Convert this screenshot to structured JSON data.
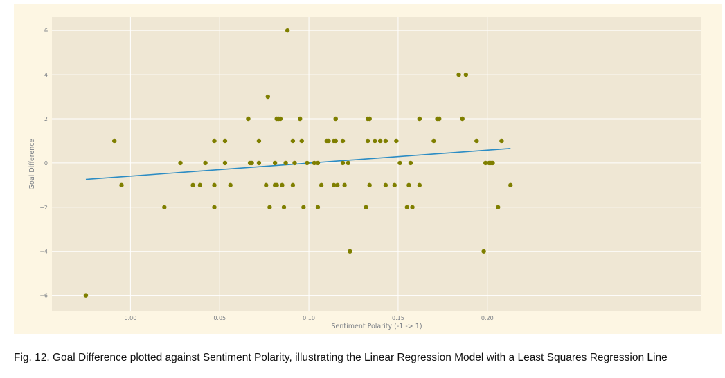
{
  "caption": "Fig. 12. Goal Difference plotted against Sentiment Polarity, illustrating the Linear Regression Model with a Least Squares Regression Line",
  "colors": {
    "figure_background": "#fdf6e3",
    "plot_background": "#efe7d4",
    "grid": "#ffffff",
    "points": "#7f7f00",
    "regression_line": "#2b8cc4",
    "text": "#7a7f86"
  },
  "chart_data": {
    "type": "scatter",
    "title": "",
    "xlabel": "Sentiment Polarity (-1 -> 1)",
    "ylabel": "Goal Difference",
    "xlim": [
      -0.044,
      0.32
    ],
    "ylim": [
      -6.7,
      6.6
    ],
    "grid": true,
    "x_ticks": [
      0.0,
      0.05,
      0.1,
      0.15,
      0.2
    ],
    "x_tick_labels": [
      "0.00",
      "0.05",
      "0.10",
      "0.15",
      "0.20"
    ],
    "y_ticks": [
      -6,
      -4,
      -2,
      0,
      2,
      4,
      6
    ],
    "y_tick_labels": [
      "−6",
      "−4",
      "−2",
      "0",
      "2",
      "4",
      "6"
    ],
    "points": [
      {
        "x": -0.025,
        "y": -6
      },
      {
        "x": -0.009,
        "y": 1
      },
      {
        "x": -0.005,
        "y": -1
      },
      {
        "x": 0.019,
        "y": -2
      },
      {
        "x": 0.028,
        "y": 0
      },
      {
        "x": 0.035,
        "y": -1
      },
      {
        "x": 0.039,
        "y": -1
      },
      {
        "x": 0.042,
        "y": 0
      },
      {
        "x": 0.047,
        "y": 1
      },
      {
        "x": 0.047,
        "y": -1
      },
      {
        "x": 0.047,
        "y": -2
      },
      {
        "x": 0.053,
        "y": 1
      },
      {
        "x": 0.053,
        "y": 0
      },
      {
        "x": 0.056,
        "y": -1
      },
      {
        "x": 0.066,
        "y": 2
      },
      {
        "x": 0.067,
        "y": 0
      },
      {
        "x": 0.068,
        "y": 0
      },
      {
        "x": 0.072,
        "y": 1
      },
      {
        "x": 0.072,
        "y": 0
      },
      {
        "x": 0.076,
        "y": -1
      },
      {
        "x": 0.077,
        "y": 3
      },
      {
        "x": 0.078,
        "y": -2
      },
      {
        "x": 0.081,
        "y": 0
      },
      {
        "x": 0.082,
        "y": 2
      },
      {
        "x": 0.083,
        "y": 2
      },
      {
        "x": 0.084,
        "y": 2
      },
      {
        "x": 0.081,
        "y": -1
      },
      {
        "x": 0.082,
        "y": -1
      },
      {
        "x": 0.085,
        "y": -1
      },
      {
        "x": 0.086,
        "y": -2
      },
      {
        "x": 0.087,
        "y": 0
      },
      {
        "x": 0.088,
        "y": 6
      },
      {
        "x": 0.091,
        "y": 1
      },
      {
        "x": 0.091,
        "y": -1
      },
      {
        "x": 0.092,
        "y": 0
      },
      {
        "x": 0.095,
        "y": 2
      },
      {
        "x": 0.096,
        "y": 1
      },
      {
        "x": 0.097,
        "y": -2
      },
      {
        "x": 0.099,
        "y": 0
      },
      {
        "x": 0.103,
        "y": 0
      },
      {
        "x": 0.105,
        "y": 0
      },
      {
        "x": 0.105,
        "y": -2
      },
      {
        "x": 0.107,
        "y": -1
      },
      {
        "x": 0.11,
        "y": 1
      },
      {
        "x": 0.111,
        "y": 1
      },
      {
        "x": 0.114,
        "y": 1
      },
      {
        "x": 0.115,
        "y": 1
      },
      {
        "x": 0.115,
        "y": 2
      },
      {
        "x": 0.114,
        "y": -1
      },
      {
        "x": 0.116,
        "y": -1
      },
      {
        "x": 0.119,
        "y": 0
      },
      {
        "x": 0.119,
        "y": 1
      },
      {
        "x": 0.12,
        "y": -1
      },
      {
        "x": 0.122,
        "y": 0
      },
      {
        "x": 0.123,
        "y": -4
      },
      {
        "x": 0.132,
        "y": -2
      },
      {
        "x": 0.133,
        "y": 1
      },
      {
        "x": 0.133,
        "y": 2
      },
      {
        "x": 0.134,
        "y": 2
      },
      {
        "x": 0.134,
        "y": -1
      },
      {
        "x": 0.137,
        "y": 1
      },
      {
        "x": 0.14,
        "y": 1
      },
      {
        "x": 0.143,
        "y": 1
      },
      {
        "x": 0.143,
        "y": -1
      },
      {
        "x": 0.148,
        "y": -1
      },
      {
        "x": 0.149,
        "y": 1
      },
      {
        "x": 0.151,
        "y": 0
      },
      {
        "x": 0.155,
        "y": -2
      },
      {
        "x": 0.156,
        "y": -1
      },
      {
        "x": 0.157,
        "y": 0
      },
      {
        "x": 0.158,
        "y": -2
      },
      {
        "x": 0.162,
        "y": 2
      },
      {
        "x": 0.162,
        "y": -1
      },
      {
        "x": 0.17,
        "y": 1
      },
      {
        "x": 0.172,
        "y": 2
      },
      {
        "x": 0.173,
        "y": 2
      },
      {
        "x": 0.184,
        "y": 4
      },
      {
        "x": 0.186,
        "y": 2
      },
      {
        "x": 0.188,
        "y": 4
      },
      {
        "x": 0.194,
        "y": 1
      },
      {
        "x": 0.198,
        "y": -4
      },
      {
        "x": 0.199,
        "y": 0
      },
      {
        "x": 0.201,
        "y": 0
      },
      {
        "x": 0.202,
        "y": 0
      },
      {
        "x": 0.203,
        "y": 0
      },
      {
        "x": 0.206,
        "y": -2
      },
      {
        "x": 0.208,
        "y": 1
      },
      {
        "x": 0.213,
        "y": -1
      }
    ],
    "regression_line": {
      "x": [
        -0.025,
        0.213
      ],
      "y": [
        -0.74,
        0.66
      ]
    }
  }
}
